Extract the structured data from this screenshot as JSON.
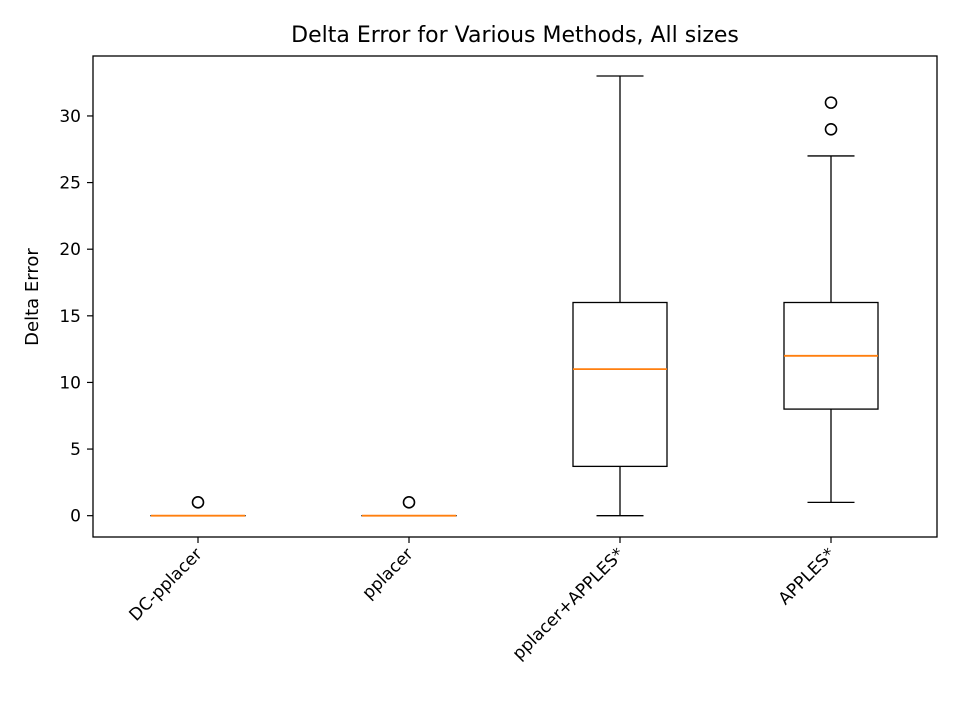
{
  "chart_data": {
    "type": "box",
    "title": "Delta Error for Various Methods, All sizes",
    "xlabel": "",
    "ylabel": "Delta Error",
    "ylim": [
      -1.6,
      34.5
    ],
    "yticks": [
      0,
      5,
      10,
      15,
      20,
      25,
      30
    ],
    "grid": false,
    "categories": [
      "DC-pplacer",
      "pplacer",
      "pplacer+APPLES*",
      "APPLES*"
    ],
    "boxes": [
      {
        "whisker_low": 0,
        "q1": 0,
        "median": 0,
        "q3": 0,
        "whisker_high": 0,
        "outliers": [
          1
        ]
      },
      {
        "whisker_low": 0,
        "q1": 0,
        "median": 0,
        "q3": 0,
        "whisker_high": 0,
        "outliers": [
          1
        ]
      },
      {
        "whisker_low": 0,
        "q1": 3.7,
        "median": 11,
        "q3": 16,
        "whisker_high": 33,
        "outliers": []
      },
      {
        "whisker_low": 1,
        "q1": 8,
        "median": 12,
        "q3": 16,
        "whisker_high": 27,
        "outliers": [
          29,
          31
        ]
      }
    ],
    "colors": {
      "box": "#000000",
      "median": "#ff7f0e",
      "outlier": "#000000"
    }
  }
}
